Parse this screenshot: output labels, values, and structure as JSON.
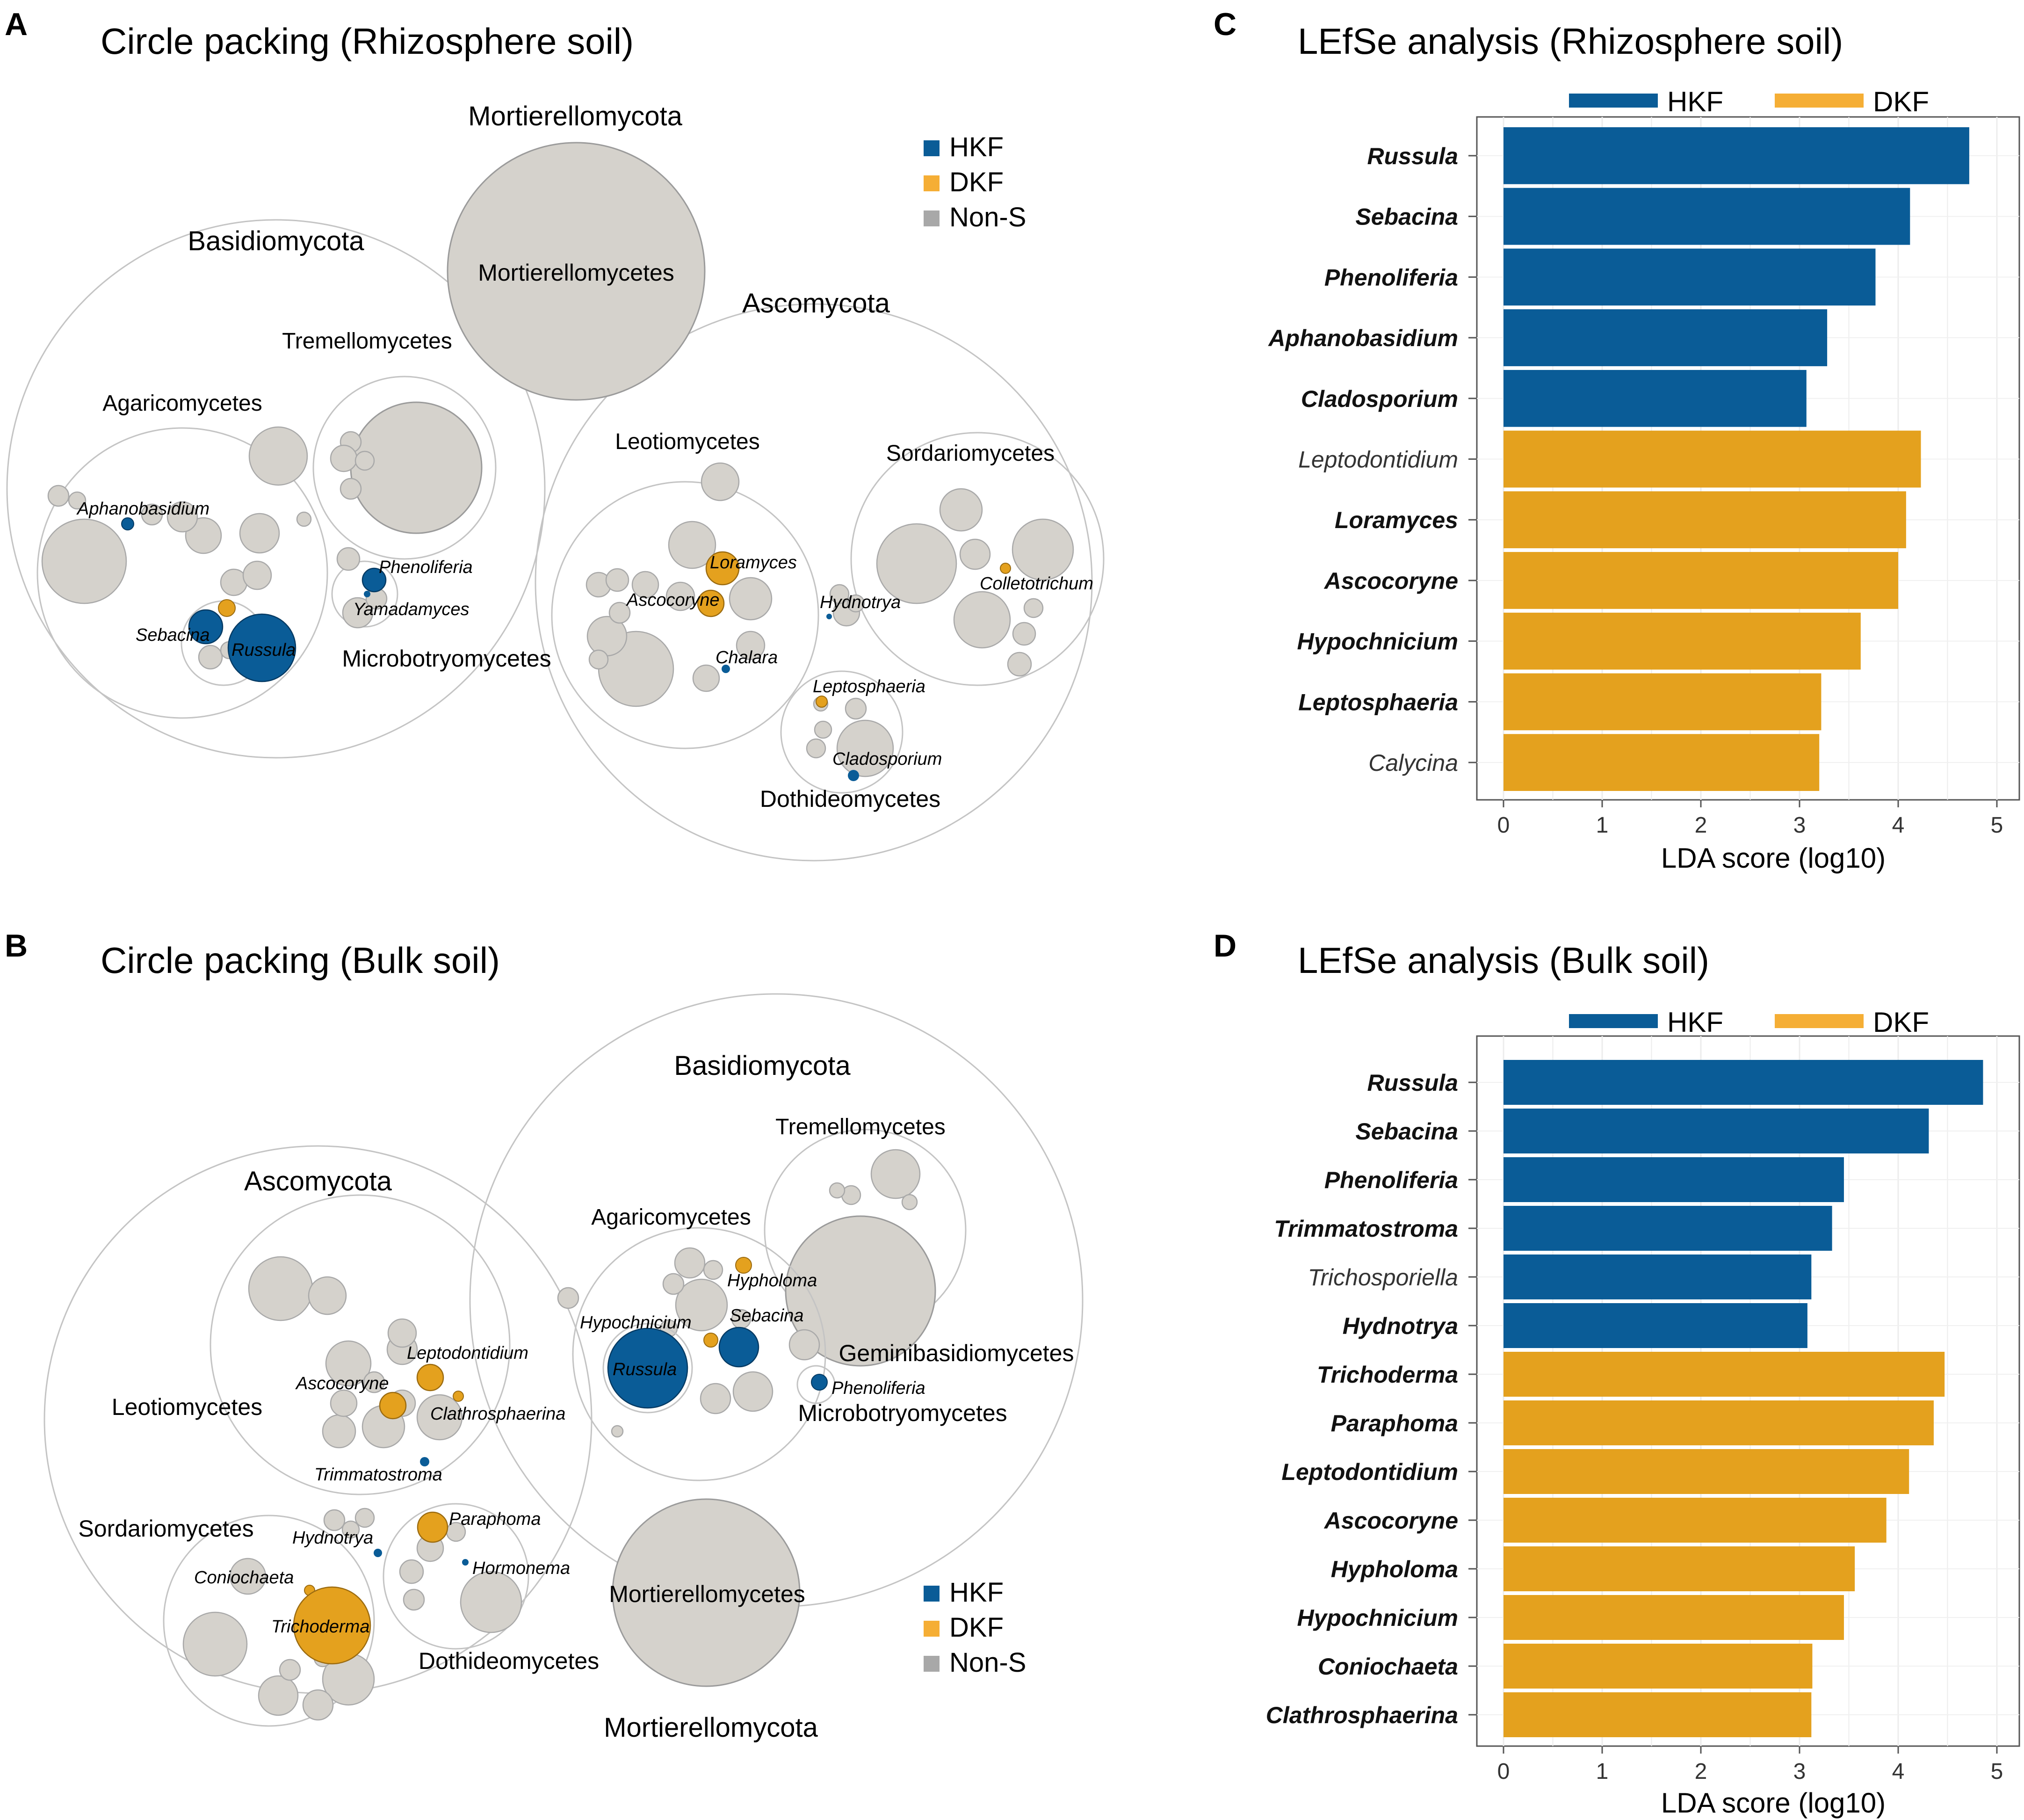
{
  "colors": {
    "hkf": "#0A5C97",
    "dkf": "#E4A11E",
    "non_s": "#D5D2CC",
    "non_s_legend": "#A8A8A8",
    "outline": "#BFBFBF"
  },
  "legend": {
    "hkf": "HKF",
    "dkf": "DKF",
    "non_s": "Non-S"
  },
  "chart_data": [
    {
      "panel": "A",
      "type": "circle-packing",
      "title": "Circle packing (Rhizosphere soil)",
      "phyla": [
        "Mortierellomycota",
        "Basidiomycota",
        "Ascomycota"
      ],
      "classes": [
        "Mortierellomycetes",
        "Tremellomycetes",
        "Agaricomycetes",
        "Microbotryomycetes",
        "Leotiomycetes",
        "Sordariomycetes",
        "Dothideomycetes"
      ],
      "genera": [
        {
          "name": "Aphanobasidium",
          "group": "HKF"
        },
        {
          "name": "Phenoliferia",
          "group": "HKF"
        },
        {
          "name": "Yamadamyces",
          "group": "Non-S"
        },
        {
          "name": "Sebacina",
          "group": "HKF"
        },
        {
          "name": "Russula",
          "group": "HKF"
        },
        {
          "name": "Loramyces",
          "group": "DKF"
        },
        {
          "name": "Ascocoryne",
          "group": "DKF"
        },
        {
          "name": "Hydnotrya",
          "group": "HKF"
        },
        {
          "name": "Colletotrichum",
          "group": "DKF"
        },
        {
          "name": "Chalara",
          "group": "HKF"
        },
        {
          "name": "Leptosphaeria",
          "group": "DKF"
        },
        {
          "name": "Cladosporium",
          "group": "HKF"
        }
      ]
    },
    {
      "panel": "B",
      "type": "circle-packing",
      "title": "Circle packing (Bulk soil)",
      "phyla": [
        "Basidiomycota",
        "Ascomycota",
        "Mortierellomycota"
      ],
      "classes": [
        "Tremellomycetes",
        "Agaricomycetes",
        "Geminibasidiomycetes",
        "Microbotryomycetes",
        "Leotiomycetes",
        "Sordariomycetes",
        "Dothideomycetes",
        "Mortierellomycetes"
      ],
      "genera": [
        {
          "name": "Hypholoma",
          "group": "DKF"
        },
        {
          "name": "Hypochnicium",
          "group": "DKF"
        },
        {
          "name": "Sebacina",
          "group": "HKF"
        },
        {
          "name": "Russula",
          "group": "HKF"
        },
        {
          "name": "Phenoliferia",
          "group": "HKF"
        },
        {
          "name": "Leptodontidium",
          "group": "DKF"
        },
        {
          "name": "Ascocoryne",
          "group": "DKF"
        },
        {
          "name": "Clathrosphaerina",
          "group": "DKF"
        },
        {
          "name": "Trimmatostroma",
          "group": "HKF"
        },
        {
          "name": "Paraphoma",
          "group": "DKF"
        },
        {
          "name": "Hydnotrya",
          "group": "HKF"
        },
        {
          "name": "Hormonema",
          "group": "HKF"
        },
        {
          "name": "Coniochaeta",
          "group": "DKF"
        },
        {
          "name": "Trichoderma",
          "group": "DKF"
        }
      ]
    },
    {
      "panel": "C",
      "type": "bar",
      "title": "LEfSe analysis (Rhizosphere soil)",
      "xlabel": "LDA score (log10)",
      "xlim": [
        0,
        5.25
      ],
      "xticks": [
        0,
        1,
        2,
        3,
        4,
        5
      ],
      "bars": [
        {
          "name": "Russula",
          "value": 4.72,
          "group": "HKF",
          "bold": true
        },
        {
          "name": "Sebacina",
          "value": 4.12,
          "group": "HKF",
          "bold": true
        },
        {
          "name": "Phenoliferia",
          "value": 3.77,
          "group": "HKF",
          "bold": true
        },
        {
          "name": "Aphanobasidium",
          "value": 3.28,
          "group": "HKF",
          "bold": true
        },
        {
          "name": "Cladosporium",
          "value": 3.07,
          "group": "HKF",
          "bold": true
        },
        {
          "name": "Leptodontidium",
          "value": 4.23,
          "group": "DKF",
          "bold": false
        },
        {
          "name": "Loramyces",
          "value": 4.08,
          "group": "DKF",
          "bold": true
        },
        {
          "name": "Ascocoryne",
          "value": 4.0,
          "group": "DKF",
          "bold": true
        },
        {
          "name": "Hypochnicium",
          "value": 3.62,
          "group": "DKF",
          "bold": true
        },
        {
          "name": "Leptosphaeria",
          "value": 3.22,
          "group": "DKF",
          "bold": true
        },
        {
          "name": "Calycina",
          "value": 3.2,
          "group": "DKF",
          "bold": false
        }
      ]
    },
    {
      "panel": "D",
      "type": "bar",
      "title": "LEfSe analysis (Bulk soil)",
      "xlabel": "LDA score (log10)",
      "xlim": [
        0,
        5.25
      ],
      "xticks": [
        0,
        1,
        2,
        3,
        4,
        5
      ],
      "bars": [
        {
          "name": "Russula",
          "value": 4.86,
          "group": "HKF",
          "bold": true
        },
        {
          "name": "Sebacina",
          "value": 4.31,
          "group": "HKF",
          "bold": true
        },
        {
          "name": "Phenoliferia",
          "value": 3.45,
          "group": "HKF",
          "bold": true
        },
        {
          "name": "Trimmatostroma",
          "value": 3.33,
          "group": "HKF",
          "bold": true
        },
        {
          "name": "Trichosporiella",
          "value": 3.12,
          "group": "HKF",
          "bold": false
        },
        {
          "name": "Hydnotrya",
          "value": 3.08,
          "group": "HKF",
          "bold": true
        },
        {
          "name": "Trichoderma",
          "value": 4.47,
          "group": "DKF",
          "bold": true
        },
        {
          "name": "Paraphoma",
          "value": 4.36,
          "group": "DKF",
          "bold": true
        },
        {
          "name": "Leptodontidium",
          "value": 4.11,
          "group": "DKF",
          "bold": true
        },
        {
          "name": "Ascocoryne",
          "value": 3.88,
          "group": "DKF",
          "bold": true
        },
        {
          "name": "Hypholoma",
          "value": 3.56,
          "group": "DKF",
          "bold": true
        },
        {
          "name": "Hypochnicium",
          "value": 3.45,
          "group": "DKF",
          "bold": true
        },
        {
          "name": "Coniochaeta",
          "value": 3.13,
          "group": "DKF",
          "bold": true
        },
        {
          "name": "Clathrosphaerina",
          "value": 3.12,
          "group": "DKF",
          "bold": true
        }
      ]
    }
  ]
}
